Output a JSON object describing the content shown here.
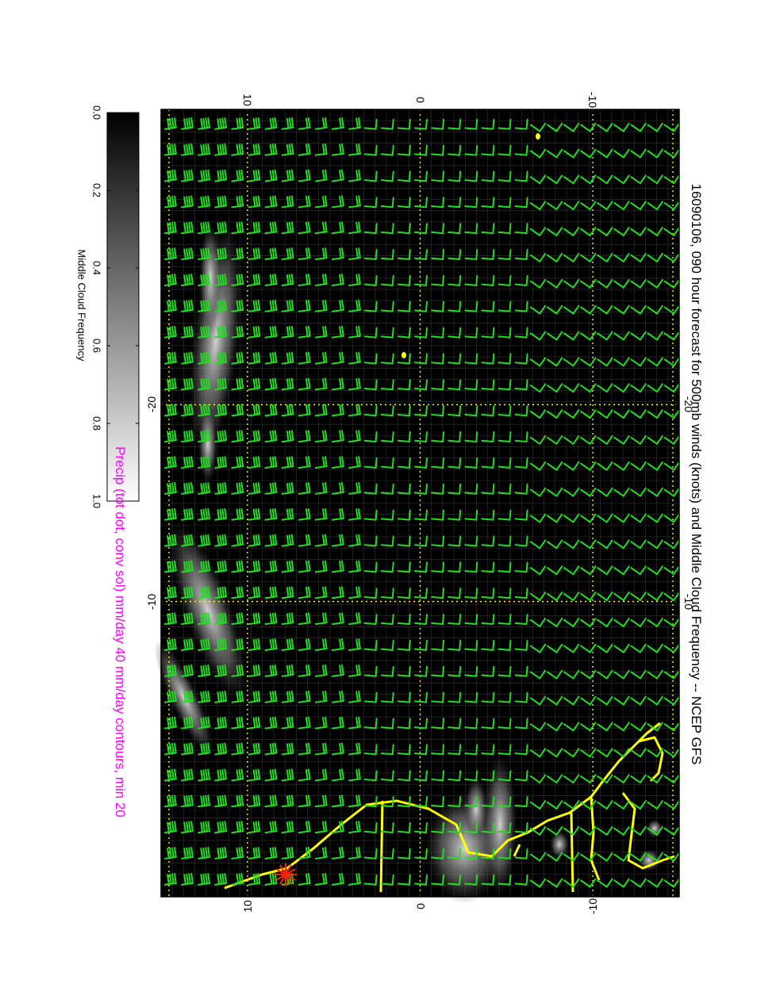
{
  "title": "16090106, 090 hour forecast for 500mb winds (knots) and Middle Cloud Frequency -- NCEP GFS",
  "subtitle": "Precip (tot dot, conv sol) mm/day 40 mm/day contours, min 20",
  "colorbar": {
    "label": "Middle Cloud Frequency",
    "ticks": [
      "0.0",
      "0.2",
      "0.4",
      "0.6",
      "0.8",
      "1.0"
    ],
    "range": [
      0.0,
      1.0
    ],
    "scale": "greyscale, dark (0.0) to light (1.0)"
  },
  "map": {
    "lon_ticks": [
      "-20",
      "-10"
    ],
    "lat_ticks": [
      "-10",
      "0",
      "10"
    ],
    "lon_range": [
      -35,
      5
    ],
    "lat_range": [
      -15,
      15
    ],
    "background_color": "#000000",
    "coastline_color": "#ffff00",
    "graticule_color": "#ffff00",
    "wind_barb_color": "#22dd22",
    "marker_color": "#ff2200"
  }
}
